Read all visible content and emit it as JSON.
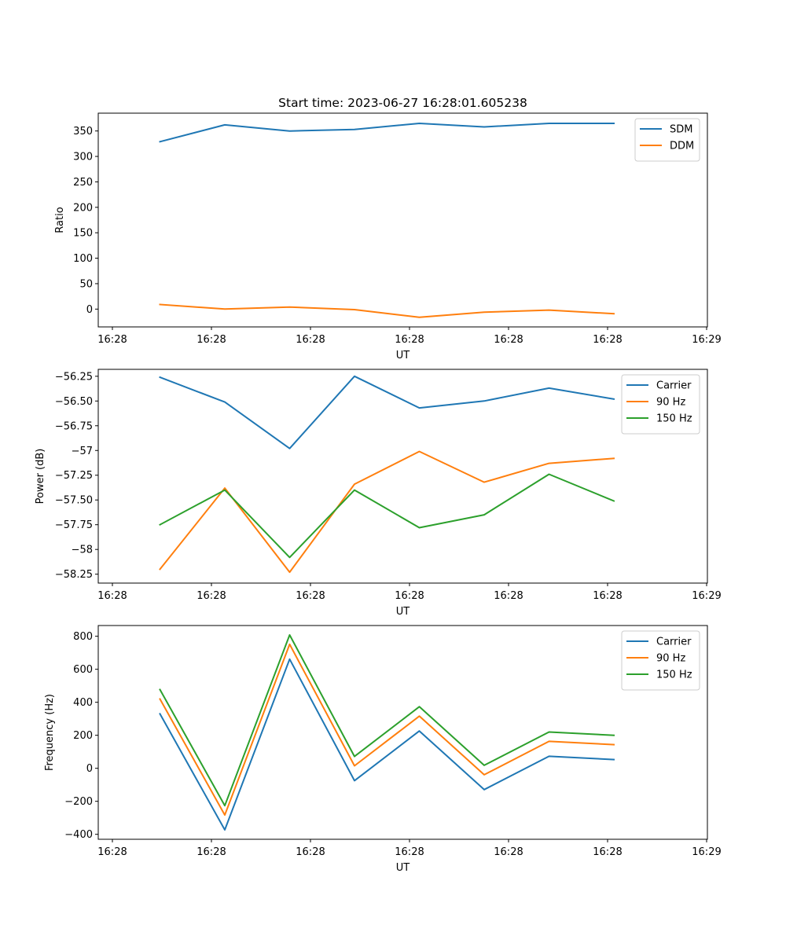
{
  "figure_title": "Start time: 2023-06-27 16:28:01.605238",
  "colors": {
    "blue": "#1f77b4",
    "orange": "#ff7f0e",
    "green": "#2ca02c"
  },
  "chart_data": [
    {
      "type": "line",
      "xlabel": "UT",
      "ylabel": "Ratio",
      "xticks": [
        "16:28",
        "16:28",
        "16:28",
        "16:28",
        "16:28",
        "16:28",
        "16:29"
      ],
      "ylim": [
        -35,
        385
      ],
      "yticks": [
        0,
        50,
        100,
        150,
        200,
        250,
        300,
        350
      ],
      "legend_position": "upper right",
      "series": [
        {
          "name": "SDM",
          "color": "#1f77b4",
          "values": [
            329,
            362,
            350,
            353,
            365,
            358,
            365,
            365
          ]
        },
        {
          "name": "DDM",
          "color": "#ff7f0e",
          "values": [
            9,
            0,
            4,
            -1,
            -16,
            -6,
            -2,
            -9
          ]
        }
      ]
    },
    {
      "type": "line",
      "xlabel": "UT",
      "ylabel": "Power (dB)",
      "xticks": [
        "16:28",
        "16:28",
        "16:28",
        "16:28",
        "16:28",
        "16:28",
        "16:29"
      ],
      "ylim": [
        -58.34,
        -56.18
      ],
      "yticks": [
        -56.25,
        -56.5,
        -56.75,
        -57.0,
        -57.25,
        -57.5,
        -57.75,
        -58.0,
        -58.25
      ],
      "legend_position": "upper right",
      "series": [
        {
          "name": "Carrier",
          "color": "#1f77b4",
          "values": [
            -56.26,
            -56.51,
            -56.98,
            -56.25,
            -56.57,
            -56.5,
            -56.37,
            -56.48
          ]
        },
        {
          "name": "90 Hz",
          "color": "#ff7f0e",
          "values": [
            -58.2,
            -57.38,
            -58.23,
            -57.34,
            -57.01,
            -57.32,
            -57.13,
            -57.08
          ]
        },
        {
          "name": "150 Hz",
          "color": "#2ca02c",
          "values": [
            -57.75,
            -57.4,
            -58.08,
            -57.4,
            -57.78,
            -57.65,
            -57.24,
            -57.51
          ]
        }
      ]
    },
    {
      "type": "line",
      "xlabel": "UT",
      "ylabel": "Frequency (Hz)",
      "xticks": [
        "16:28",
        "16:28",
        "16:28",
        "16:28",
        "16:28",
        "16:28",
        "16:29"
      ],
      "ylim": [
        -430,
        865
      ],
      "yticks": [
        -400,
        -200,
        0,
        200,
        400,
        600,
        800
      ],
      "legend_position": "upper right",
      "series": [
        {
          "name": "Carrier",
          "color": "#1f77b4",
          "values": [
            330,
            -373,
            661,
            -75,
            226,
            -129,
            73,
            53
          ]
        },
        {
          "name": "90 Hz",
          "color": "#ff7f0e",
          "values": [
            420,
            -283,
            751,
            15,
            316,
            -39,
            163,
            143
          ]
        },
        {
          "name": "150 Hz",
          "color": "#2ca02c",
          "values": [
            477,
            -226,
            808,
            72,
            373,
            18,
            220,
            200
          ]
        }
      ]
    }
  ]
}
